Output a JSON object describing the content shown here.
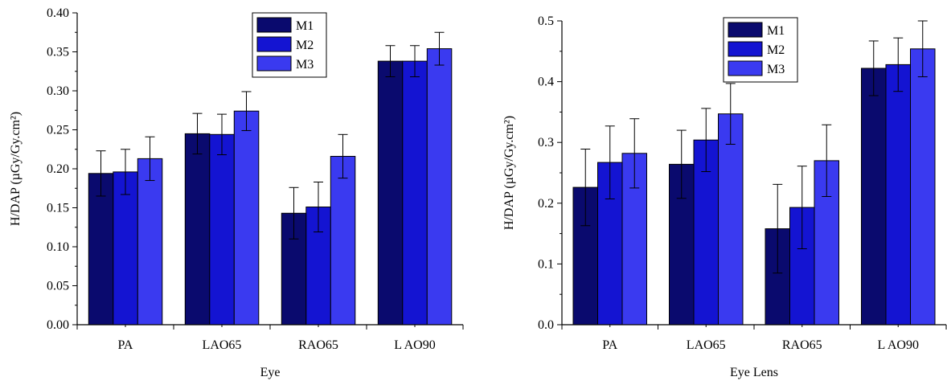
{
  "chart_data": [
    {
      "type": "bar",
      "xlabel": "Eye",
      "ylabel": "H/DAP (µGy/Gy.cm²)",
      "categories": [
        "PA",
        "LAO65",
        "RAO65",
        "L AO90"
      ],
      "ylim": [
        0,
        0.4
      ],
      "yticks": [
        "0.00",
        "0.05",
        "0.10",
        "0.15",
        "0.20",
        "0.25",
        "0.30",
        "0.35",
        "0.40"
      ],
      "legend_position": "top-center",
      "series": [
        {
          "name": "M1",
          "color": "#0a0a6e",
          "values": [
            0.194,
            0.245,
            0.143,
            0.338
          ],
          "errors": [
            0.029,
            0.026,
            0.033,
            0.02
          ]
        },
        {
          "name": "M2",
          "color": "#1414d2",
          "values": [
            0.196,
            0.244,
            0.151,
            0.338
          ],
          "errors": [
            0.029,
            0.026,
            0.032,
            0.02
          ]
        },
        {
          "name": "M3",
          "color": "#3a3af0",
          "values": [
            0.213,
            0.274,
            0.216,
            0.354
          ],
          "errors": [
            0.028,
            0.025,
            0.028,
            0.021
          ]
        }
      ]
    },
    {
      "type": "bar",
      "xlabel": "Eye Lens",
      "ylabel": "H/DAP (µGy/Gy.cm²)",
      "categories": [
        "PA",
        "LAO65",
        "RAO65",
        "L AO90"
      ],
      "ylim": [
        0,
        0.5
      ],
      "yticks": [
        "0.0",
        "0.1",
        "0.2",
        "0.3",
        "0.4",
        "0.5"
      ],
      "legend_position": "top-center",
      "series": [
        {
          "name": "M1",
          "color": "#0a0a6e",
          "values": [
            0.226,
            0.264,
            0.158,
            0.422
          ],
          "errors": [
            0.063,
            0.056,
            0.073,
            0.045
          ]
        },
        {
          "name": "M2",
          "color": "#1414d2",
          "values": [
            0.267,
            0.304,
            0.193,
            0.428
          ],
          "errors": [
            0.06,
            0.052,
            0.068,
            0.044
          ]
        },
        {
          "name": "M3",
          "color": "#3a3af0",
          "values": [
            0.282,
            0.347,
            0.27,
            0.454
          ],
          "errors": [
            0.057,
            0.05,
            0.059,
            0.046
          ]
        }
      ]
    }
  ]
}
